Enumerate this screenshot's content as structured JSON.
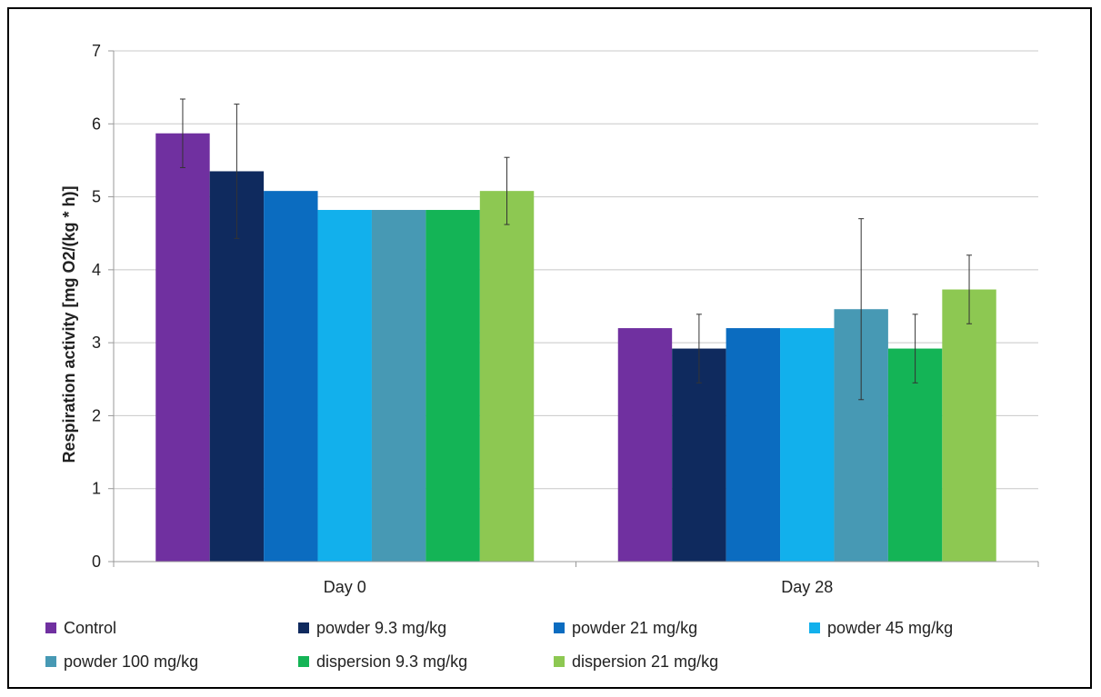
{
  "chart_data": {
    "type": "bar",
    "title": "",
    "xlabel": "",
    "ylabel": "Respiration activity [mg O2/(kg * h)]",
    "ylim": [
      0,
      7
    ],
    "yticks": [
      0,
      1,
      2,
      3,
      4,
      5,
      6,
      7
    ],
    "grid": true,
    "legend_position": "bottom",
    "categories": [
      "Day 0",
      "Day 28"
    ],
    "series": [
      {
        "name": "Control",
        "color": "#7030A0",
        "values": [
          5.87,
          3.2
        ],
        "errors": [
          0.47,
          null
        ]
      },
      {
        "name": "powder 9.3 mg/kg",
        "color": "#0F2A5E",
        "values": [
          5.35,
          2.92
        ],
        "errors": [
          0.92,
          0.47
        ]
      },
      {
        "name": "powder 21 mg/kg",
        "color": "#0B6CC0",
        "values": [
          5.08,
          3.2
        ],
        "errors": [
          null,
          null
        ]
      },
      {
        "name": "powder 45 mg/kg",
        "color": "#12B0EC",
        "values": [
          4.82,
          3.2
        ],
        "errors": [
          null,
          null
        ]
      },
      {
        "name": "powder 100 mg/kg",
        "color": "#4799B4",
        "values": [
          4.82,
          3.46
        ],
        "errors": [
          null,
          1.24
        ]
      },
      {
        "name": "dispersion 9.3 mg/kg",
        "color": "#14B456",
        "values": [
          4.82,
          2.92
        ],
        "errors": [
          null,
          0.47
        ]
      },
      {
        "name": "dispersion 21 mg/kg",
        "color": "#8DC852",
        "values": [
          5.08,
          3.73
        ],
        "errors": [
          0.46,
          0.47
        ]
      }
    ]
  }
}
